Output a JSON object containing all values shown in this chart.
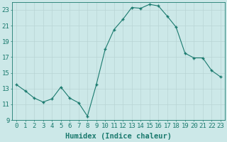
{
  "x": [
    0,
    1,
    2,
    3,
    4,
    5,
    6,
    7,
    8,
    9,
    10,
    11,
    12,
    13,
    14,
    15,
    16,
    17,
    18,
    19,
    20,
    21,
    22,
    23
  ],
  "y": [
    13.5,
    12.7,
    11.8,
    11.3,
    11.7,
    13.2,
    11.8,
    11.2,
    9.5,
    13.5,
    18.0,
    20.5,
    21.8,
    23.3,
    23.2,
    23.7,
    23.5,
    22.2,
    20.8,
    17.5,
    16.9,
    16.9,
    15.3,
    14.5
  ],
  "xlabel": "Humidex (Indice chaleur)",
  "line_color": "#1a7a6e",
  "marker_color": "#1a7a6e",
  "bg_color": "#cce8e8",
  "grid_color": "#b8d4d4",
  "axis_color": "#1a7a6e",
  "tick_color": "#1a7a6e",
  "ylim": [
    9,
    24
  ],
  "xlim": [
    -0.5,
    23.5
  ],
  "yticks": [
    9,
    11,
    13,
    15,
    17,
    19,
    21,
    23
  ],
  "xticks": [
    0,
    1,
    2,
    3,
    4,
    5,
    6,
    7,
    8,
    9,
    10,
    11,
    12,
    13,
    14,
    15,
    16,
    17,
    18,
    19,
    20,
    21,
    22,
    23
  ],
  "tick_fontsize": 6.5,
  "xlabel_fontsize": 7.5
}
